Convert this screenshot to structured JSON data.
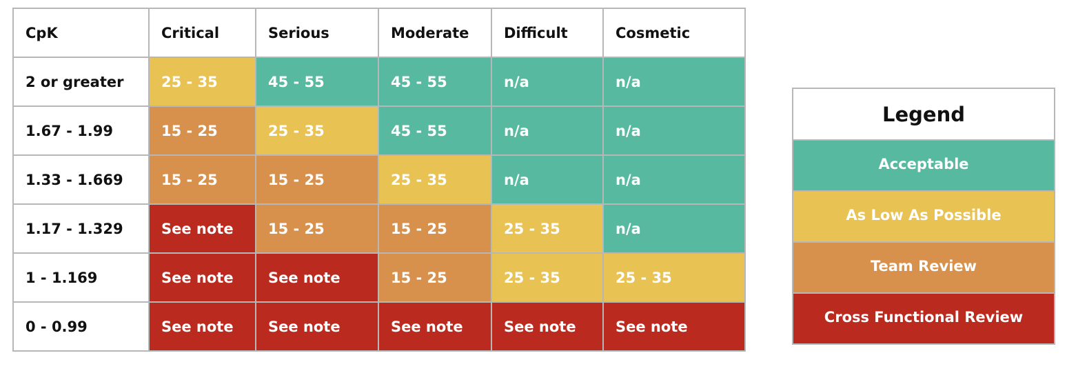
{
  "table": {
    "headers": [
      "CpK",
      "Critical",
      "Serious",
      "Moderate",
      "Difficult",
      "Cosmetic"
    ],
    "rows": [
      {
        "label": "2 or greater",
        "cells": [
          {
            "text": "25 - 35",
            "level": "alap"
          },
          {
            "text": "45 - 55",
            "level": "acceptable"
          },
          {
            "text": "45 - 55",
            "level": "acceptable"
          },
          {
            "text": "n/a",
            "level": "acceptable"
          },
          {
            "text": "n/a",
            "level": "acceptable"
          }
        ]
      },
      {
        "label": "1.67 - 1.99",
        "cells": [
          {
            "text": "15 - 25",
            "level": "team"
          },
          {
            "text": "25 - 35",
            "level": "alap"
          },
          {
            "text": "45 - 55",
            "level": "acceptable"
          },
          {
            "text": "n/a",
            "level": "acceptable"
          },
          {
            "text": "n/a",
            "level": "acceptable"
          }
        ]
      },
      {
        "label": "1.33 - 1.669",
        "cells": [
          {
            "text": "15 - 25",
            "level": "team"
          },
          {
            "text": "15 - 25",
            "level": "team"
          },
          {
            "text": "25 - 35",
            "level": "alap"
          },
          {
            "text": "n/a",
            "level": "acceptable"
          },
          {
            "text": "n/a",
            "level": "acceptable"
          }
        ]
      },
      {
        "label": "1.17 - 1.329",
        "cells": [
          {
            "text": "See note",
            "level": "cross"
          },
          {
            "text": "15 - 25",
            "level": "team"
          },
          {
            "text": "15 - 25",
            "level": "team"
          },
          {
            "text": "25 - 35",
            "level": "alap"
          },
          {
            "text": "n/a",
            "level": "acceptable"
          }
        ]
      },
      {
        "label": "1 - 1.169",
        "cells": [
          {
            "text": "See note",
            "level": "cross"
          },
          {
            "text": "See note",
            "level": "cross"
          },
          {
            "text": "15 - 25",
            "level": "team"
          },
          {
            "text": "25 - 35",
            "level": "alap"
          },
          {
            "text": "25 - 35",
            "level": "alap"
          }
        ]
      },
      {
        "label": "0 - 0.99",
        "cells": [
          {
            "text": "See note",
            "level": "cross"
          },
          {
            "text": "See note",
            "level": "cross"
          },
          {
            "text": "See note",
            "level": "cross"
          },
          {
            "text": "See note",
            "level": "cross"
          },
          {
            "text": "See note",
            "level": "cross"
          }
        ]
      }
    ]
  },
  "legend": {
    "title": "Legend",
    "items": [
      {
        "label": "Acceptable",
        "level": "acceptable"
      },
      {
        "label": "As Low As Possible",
        "level": "alap"
      },
      {
        "label": "Team Review",
        "level": "team"
      },
      {
        "label": "Cross Functional Review",
        "level": "cross"
      }
    ]
  },
  "colors": {
    "acceptable": "#57b99f",
    "alap": "#e8c253",
    "team": "#d8914c",
    "cross": "#bb2a1f",
    "grid": "#b7b7b7"
  }
}
